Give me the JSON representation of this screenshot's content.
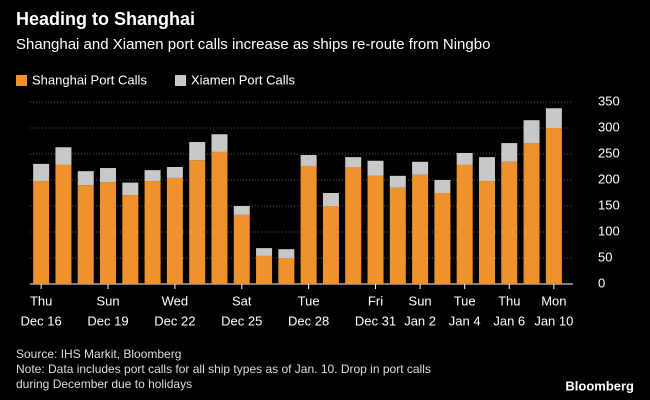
{
  "chart_data": {
    "type": "stacked_bar",
    "title": "Heading to Shanghai",
    "subtitle": "Shanghai and Xiamen port calls increase as ships re-route from Ningbo",
    "categories": [
      [
        "Thu",
        "Dec 16"
      ],
      null,
      null,
      [
        "Sun",
        "Dec 19"
      ],
      null,
      null,
      [
        "Wed",
        "Dec 22"
      ],
      null,
      null,
      [
        "Sat",
        "Dec 25"
      ],
      null,
      null,
      [
        "Tue",
        "Dec 28"
      ],
      null,
      null,
      [
        "Fri",
        "Dec 31"
      ],
      null,
      [
        "Sun",
        "Jan 2"
      ],
      null,
      [
        "Tue",
        "Jan 4"
      ],
      null,
      [
        "Thu",
        "Jan 6"
      ],
      null,
      [
        "Mon",
        "Jan 10"
      ]
    ],
    "series": [
      {
        "name": "Shanghai Port Calls",
        "color": "#f0922b",
        "values": [
          198,
          229,
          190,
          196,
          171,
          198,
          204,
          238,
          254,
          133,
          54,
          50,
          227,
          150,
          225,
          208,
          185,
          210,
          175,
          229,
          198,
          235,
          271,
          300
        ]
      },
      {
        "name": "Xiamen Port Calls",
        "color": "#c8c8c8",
        "values": [
          33,
          34,
          27,
          27,
          24,
          21,
          21,
          35,
          34,
          17,
          15,
          17,
          21,
          25,
          19,
          29,
          23,
          25,
          25,
          23,
          46,
          36,
          44,
          38
        ]
      }
    ],
    "ylim": [
      0,
      350
    ],
    "yticks": [
      0,
      50,
      100,
      150,
      200,
      250,
      300,
      350
    ],
    "grid": true,
    "source": "Source: IHS Markit, Bloomberg",
    "notes": [
      "Note: Data includes port calls for all ship types as of Jan. 10. Drop in port calls",
      "during December due to holidays"
    ],
    "brand": "Bloomberg"
  }
}
